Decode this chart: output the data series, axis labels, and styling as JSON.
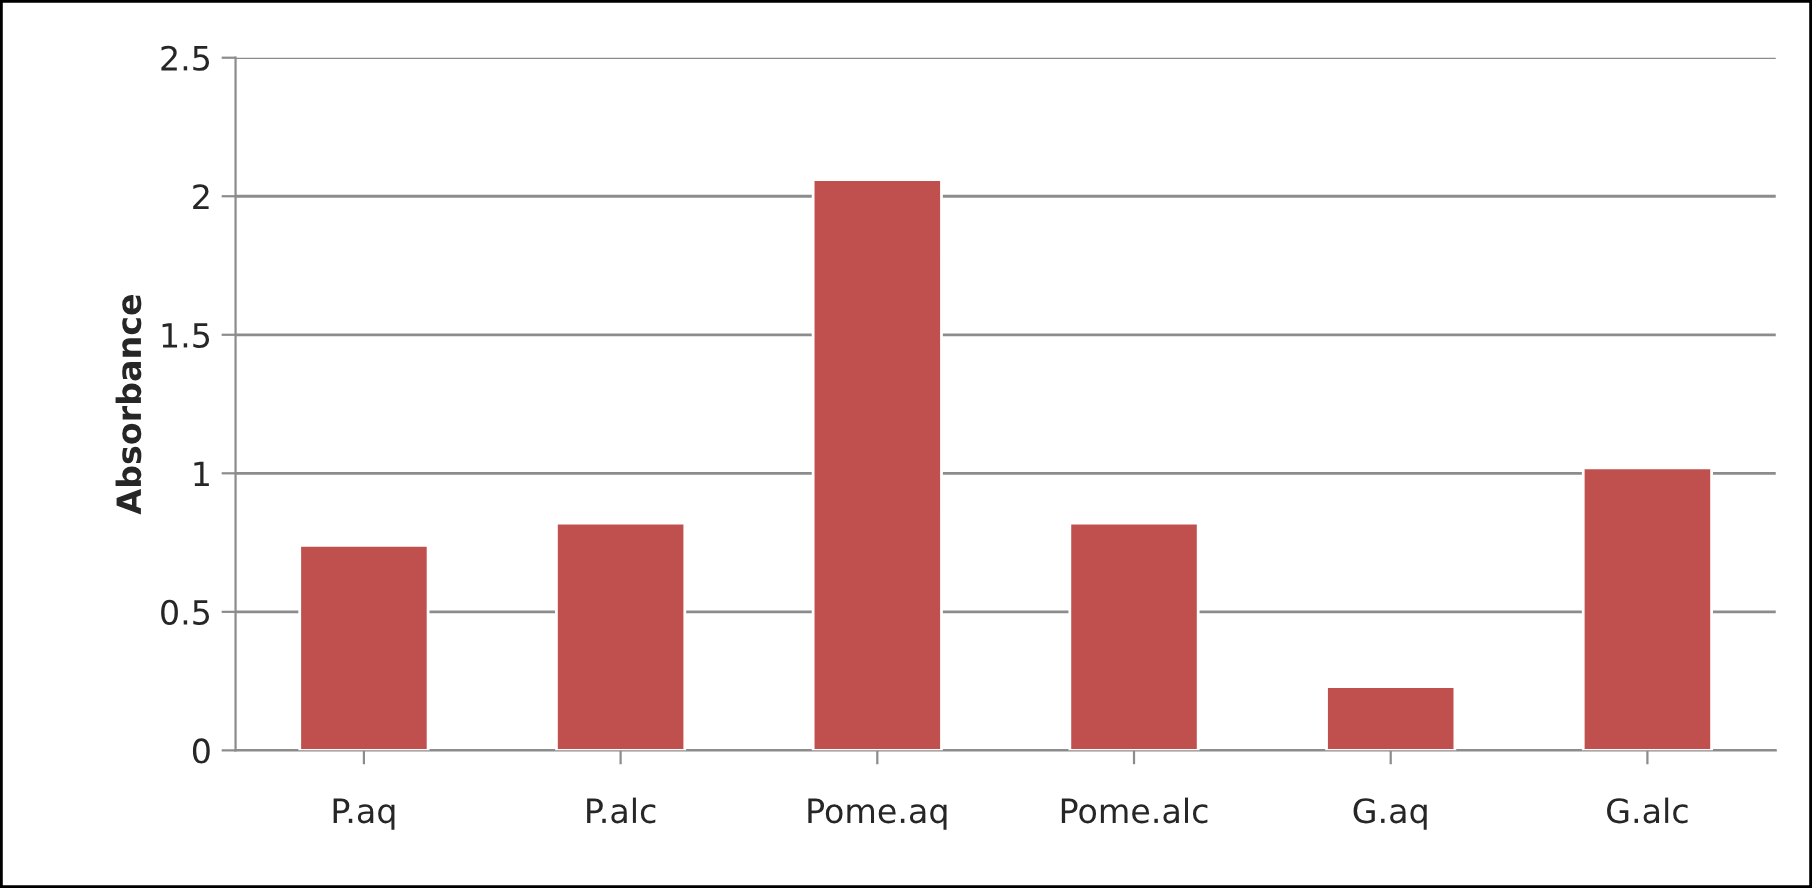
{
  "chart_data": {
    "type": "bar",
    "ylabel": "Absorbance",
    "categories": [
      "P.aq",
      "P.alc",
      "Pome.aq",
      "Pome.alc",
      "G.aq",
      "G.alc"
    ],
    "values": [
      0.74,
      0.82,
      2.06,
      0.82,
      0.23,
      1.02
    ],
    "color": "#c0504d",
    "ylim": [
      0,
      2.5
    ],
    "yticks": [
      0,
      0.5,
      1,
      1.5,
      2,
      2.5
    ],
    "grid": "y"
  }
}
